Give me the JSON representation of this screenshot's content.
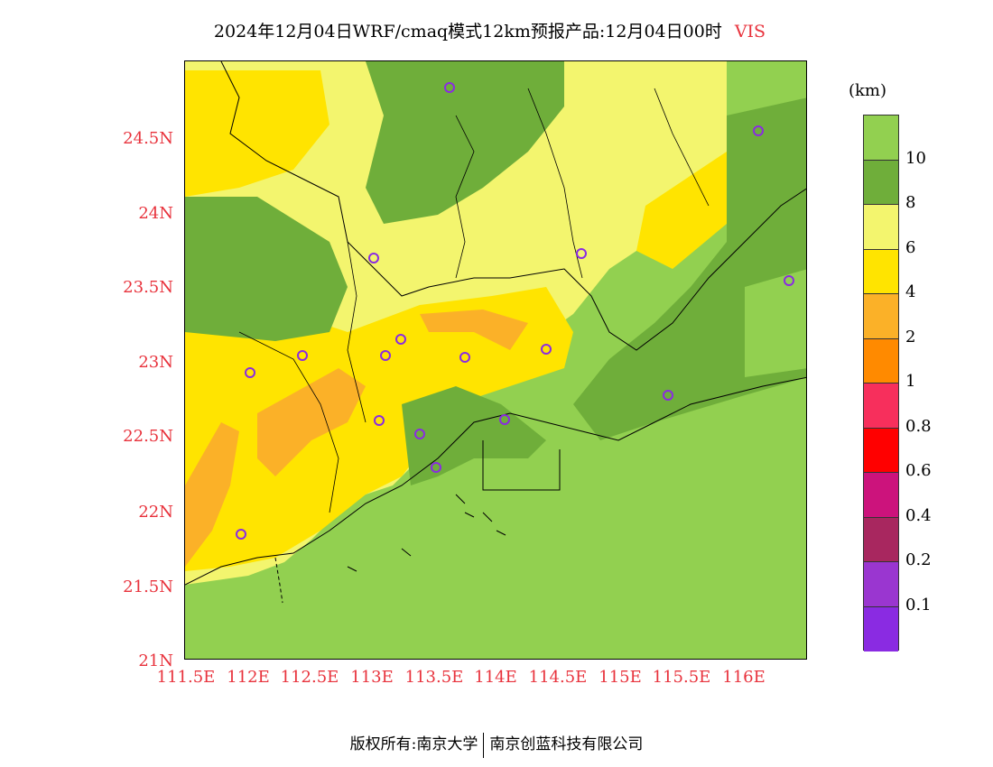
{
  "title": {
    "main": "2024年12月04日WRF/cmaq模式12km预报产品:12月04日00时",
    "variable": "VIS"
  },
  "map": {
    "y_ticks": [
      "24.5N",
      "24N",
      "23.5N",
      "23N",
      "22.5N",
      "22N",
      "21.5N",
      "21N"
    ],
    "x_ticks": [
      "111.5E",
      "112E",
      "112.5E",
      "113E",
      "113.5E",
      "114E",
      "114.5E",
      "115E",
      "115.5E",
      "116E"
    ],
    "fill_colors": {
      "sea": "#92d050",
      "light_yellow": "#f3f56e",
      "yellow": "#ffe400",
      "orange": "#fbb128",
      "dark_green": "#6fae3a",
      "light_green": "#92d050"
    },
    "station_marker_color": "#8a2be2"
  },
  "legend": {
    "units": "(km)",
    "labels": [
      "10",
      "8",
      "6",
      "4",
      "2",
      "1",
      "0.8",
      "0.6",
      "0.4",
      "0.2",
      "0.1"
    ],
    "colors": [
      "#92d050",
      "#6fae3a",
      "#f3f56e",
      "#ffe400",
      "#fbb128",
      "#ff8a00",
      "#f72f5c",
      "#ff0000",
      "#cc137c",
      "#a8275f",
      "#9a36d0",
      "#8a2be2"
    ]
  },
  "footer": {
    "left": "版权所有:南京大学",
    "right": "南京创蓝科技有限公司"
  }
}
